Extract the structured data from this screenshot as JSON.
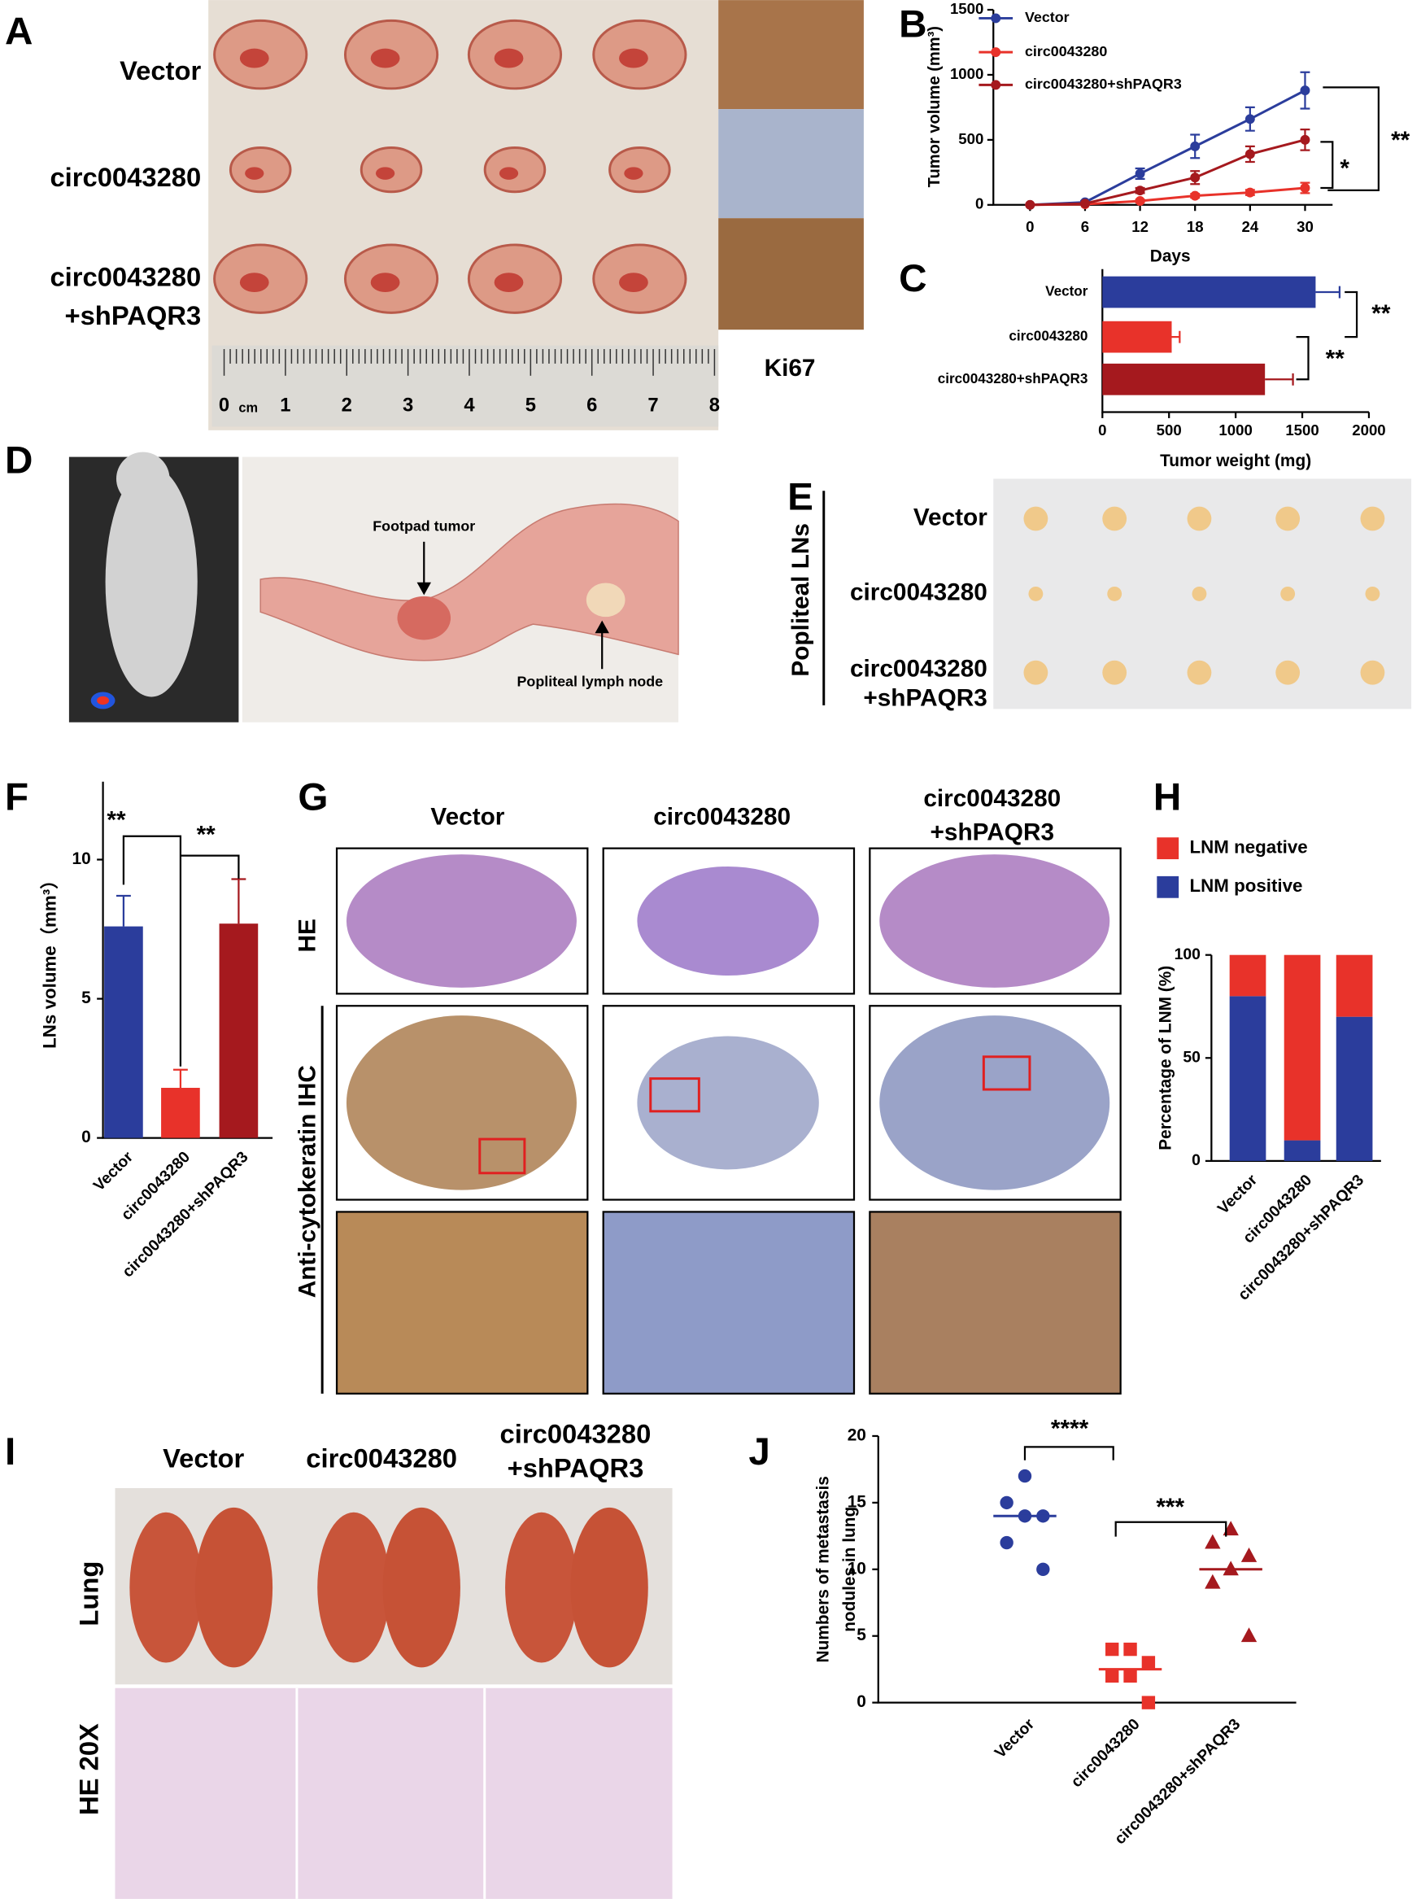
{
  "panels": [
    "A",
    "B",
    "C",
    "D",
    "E",
    "F",
    "G",
    "H",
    "I",
    "J"
  ],
  "panel_a": {
    "rows": [
      "Vector",
      "circ0043280",
      "circ0043280",
      "+shPAQR3"
    ],
    "stain": "Ki67",
    "ruler": [
      "0",
      "1",
      "2",
      "3",
      "4",
      "5",
      "6",
      "7",
      "8"
    ],
    "ruler_unit": "cm"
  },
  "panel_d": {
    "arrows": [
      "Footpad tumor",
      "Popliteal lymph node"
    ]
  },
  "panel_e": {
    "title": "Popliteal LNs",
    "rows": [
      "Vector",
      "circ0043280",
      "circ0043280",
      "+shPAQR3"
    ]
  },
  "panel_g": {
    "columns": [
      "Vector",
      "circ0043280",
      "circ0043280",
      "+shPAQR3"
    ],
    "rows": [
      "HE",
      "Anti-cytokeratin IHC"
    ]
  },
  "panel_i": {
    "columns": [
      "Vector",
      "circ0043280",
      "circ0043280",
      "+shPAQR3"
    ],
    "rows": [
      "Lung",
      "HE 20X"
    ]
  },
  "chart_data": [
    {
      "type": "line",
      "xlabel": "Days",
      "ylabel": "Tumor volume (mm³)",
      "x": [
        0,
        6,
        12,
        18,
        24,
        30
      ],
      "xlim": [
        -4,
        33
      ],
      "xticks": [
        0,
        6,
        12,
        18,
        24,
        30
      ],
      "ylim": [
        0,
        1500
      ],
      "yticks": [
        0,
        500,
        1000,
        1500
      ],
      "series": [
        {
          "name": "Vector",
          "color": "#2b3d9c",
          "values": [
            0,
            20,
            240,
            450,
            660,
            880
          ],
          "errors": [
            0,
            10,
            40,
            90,
            90,
            140
          ]
        },
        {
          "name": "circ0043280",
          "color": "#e8322a",
          "values": [
            0,
            5,
            30,
            70,
            95,
            130
          ],
          "errors": [
            0,
            3,
            10,
            15,
            20,
            40
          ]
        },
        {
          "name": "circ0043280+shPAQR3",
          "color": "#a5191e",
          "values": [
            0,
            10,
            110,
            210,
            390,
            500
          ],
          "errors": [
            0,
            5,
            20,
            50,
            60,
            80
          ]
        }
      ],
      "annotations": [
        "**",
        "*"
      ]
    },
    {
      "type": "barh",
      "xlabel": "Tumor weight (mg)",
      "categories": [
        "Vector",
        "circ0043280",
        "circ0043280+shPAQR3"
      ],
      "values": [
        1600,
        520,
        1220
      ],
      "errors": [
        180,
        60,
        210
      ],
      "colors": [
        "#2b3d9c",
        "#e8322a",
        "#a5191e"
      ],
      "xlim": [
        0,
        2000
      ],
      "xticks": [
        0,
        500,
        1000,
        1500,
        2000
      ],
      "annotations": [
        "**",
        "**"
      ]
    },
    {
      "type": "bar",
      "ylabel": "LNs volume（mm³）",
      "categories": [
        "Vector",
        "circ0043280",
        "circ0043280+shPAQR3"
      ],
      "values": [
        7.6,
        1.8,
        7.7
      ],
      "errors": [
        1.1,
        0.65,
        1.6
      ],
      "colors": [
        "#2b3d9c",
        "#e8322a",
        "#a5191e"
      ],
      "ylim": [
        0,
        12.8
      ],
      "yticks": [
        0,
        5,
        10
      ],
      "annotations": [
        "**",
        "**"
      ]
    },
    {
      "type": "stackedbar",
      "ylabel": "Percentage of LNM (%)",
      "categories": [
        "Vector",
        "circ0043280",
        "circ0043280+shPAQR3"
      ],
      "series": [
        {
          "name": "LNM positive",
          "color": "#2b3d9c",
          "values": [
            80,
            10,
            70
          ]
        },
        {
          "name": "LNM negative",
          "color": "#e8322a",
          "values": [
            20,
            90,
            30
          ]
        }
      ],
      "ylim": [
        0,
        100
      ],
      "yticks": [
        0,
        50,
        100
      ]
    },
    {
      "type": "dotplot",
      "ylabel": [
        "Numbers of metastasis",
        "nodules in lung"
      ],
      "categories": [
        "Vector",
        "circ0043280",
        "circ0043280+shPAQR3"
      ],
      "groups": [
        {
          "values": [
            17,
            15,
            14,
            14,
            12,
            10
          ],
          "mean": 14,
          "color": "#2b3d9c",
          "marker": "circle"
        },
        {
          "values": [
            4,
            4,
            3,
            2,
            2,
            0
          ],
          "mean": 2.5,
          "color": "#e8322a",
          "marker": "square"
        },
        {
          "values": [
            13,
            12,
            11,
            10,
            9,
            5
          ],
          "mean": 10,
          "color": "#a5191e",
          "marker": "triangle"
        }
      ],
      "ylim": [
        0,
        20
      ],
      "yticks": [
        0,
        5,
        10,
        15,
        20
      ],
      "annotations": [
        "****",
        "***"
      ]
    }
  ]
}
